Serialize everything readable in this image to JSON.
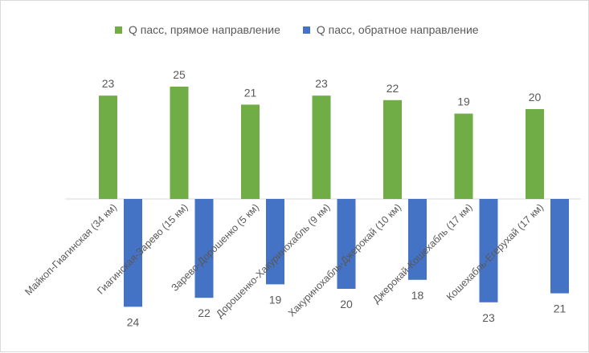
{
  "chart_data": {
    "type": "bar",
    "title": "",
    "xlabel": "",
    "ylabel": "",
    "categories": [
      "Майкоп-Гиагинская (34 км)",
      "Гиагинская-Зарево (15 км)",
      "Зарево-Дорошенко (5 км)",
      "Дорошенко-Хакуринохабль (9 км)",
      "Хакуринохабль-Джерокай (10 км)",
      "Джерокай-Кошехабль (17 км)",
      "Кошехабль-Егерухай (17 км)"
    ],
    "series": [
      {
        "name": "Q пасс, прямое направление",
        "color": "#70ad47",
        "values": [
          23,
          25,
          21,
          23,
          22,
          19,
          20
        ],
        "direction": "up"
      },
      {
        "name": "Q пасс, обратное направление",
        "color": "#4472c4",
        "values": [
          24,
          22,
          19,
          20,
          18,
          23,
          21
        ],
        "direction": "down"
      }
    ],
    "data_labels": true,
    "grid": false,
    "legend": "top"
  }
}
